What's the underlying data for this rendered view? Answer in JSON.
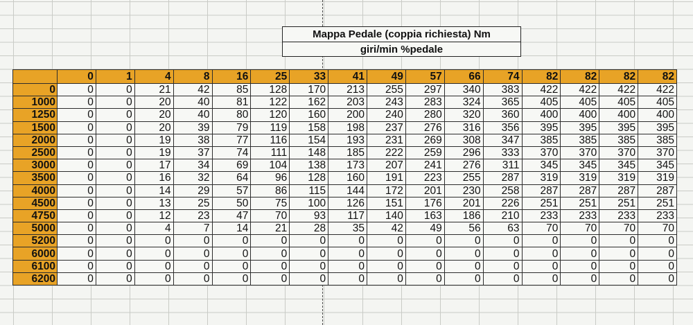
{
  "title": {
    "line1": "Mappa Pedale (coppia richiesta) Nm",
    "line2": "giri/min %pedale"
  },
  "colors": {
    "header_fill": "#e8a326",
    "cell_fill": "#f7f8f5",
    "grid": "#c9cbc6"
  },
  "table": {
    "pedal_headers": [
      "0",
      "1",
      "4",
      "8",
      "16",
      "25",
      "33",
      "41",
      "49",
      "57",
      "66",
      "74",
      "82",
      "82",
      "82",
      "82"
    ],
    "rows": [
      {
        "rpm": "0",
        "values": [
          "0",
          "0",
          "21",
          "42",
          "85",
          "128",
          "170",
          "213",
          "255",
          "297",
          "340",
          "383",
          "422",
          "422",
          "422",
          "422"
        ]
      },
      {
        "rpm": "1000",
        "values": [
          "0",
          "0",
          "20",
          "40",
          "81",
          "122",
          "162",
          "203",
          "243",
          "283",
          "324",
          "365",
          "405",
          "405",
          "405",
          "405"
        ]
      },
      {
        "rpm": "1250",
        "values": [
          "0",
          "0",
          "20",
          "40",
          "80",
          "120",
          "160",
          "200",
          "240",
          "280",
          "320",
          "360",
          "400",
          "400",
          "400",
          "400"
        ]
      },
      {
        "rpm": "1500",
        "values": [
          "0",
          "0",
          "20",
          "39",
          "79",
          "119",
          "158",
          "198",
          "237",
          "276",
          "316",
          "356",
          "395",
          "395",
          "395",
          "395"
        ]
      },
      {
        "rpm": "2000",
        "values": [
          "0",
          "0",
          "19",
          "38",
          "77",
          "116",
          "154",
          "193",
          "231",
          "269",
          "308",
          "347",
          "385",
          "385",
          "385",
          "385"
        ]
      },
      {
        "rpm": "2500",
        "values": [
          "0",
          "0",
          "19",
          "37",
          "74",
          "111",
          "148",
          "185",
          "222",
          "259",
          "296",
          "333",
          "370",
          "370",
          "370",
          "370"
        ]
      },
      {
        "rpm": "3000",
        "values": [
          "0",
          "0",
          "17",
          "34",
          "69",
          "104",
          "138",
          "173",
          "207",
          "241",
          "276",
          "311",
          "345",
          "345",
          "345",
          "345"
        ]
      },
      {
        "rpm": "3500",
        "values": [
          "0",
          "0",
          "16",
          "32",
          "64",
          "96",
          "128",
          "160",
          "191",
          "223",
          "255",
          "287",
          "319",
          "319",
          "319",
          "319"
        ]
      },
      {
        "rpm": "4000",
        "values": [
          "0",
          "0",
          "14",
          "29",
          "57",
          "86",
          "115",
          "144",
          "172",
          "201",
          "230",
          "258",
          "287",
          "287",
          "287",
          "287"
        ]
      },
      {
        "rpm": "4500",
        "values": [
          "0",
          "0",
          "13",
          "25",
          "50",
          "75",
          "100",
          "126",
          "151",
          "176",
          "201",
          "226",
          "251",
          "251",
          "251",
          "251"
        ]
      },
      {
        "rpm": "4750",
        "values": [
          "0",
          "0",
          "12",
          "23",
          "47",
          "70",
          "93",
          "117",
          "140",
          "163",
          "186",
          "210",
          "233",
          "233",
          "233",
          "233"
        ]
      },
      {
        "rpm": "5000",
        "values": [
          "0",
          "0",
          "4",
          "7",
          "14",
          "21",
          "28",
          "35",
          "42",
          "49",
          "56",
          "63",
          "70",
          "70",
          "70",
          "70"
        ]
      },
      {
        "rpm": "5200",
        "values": [
          "0",
          "0",
          "0",
          "0",
          "0",
          "0",
          "0",
          "0",
          "0",
          "0",
          "0",
          "0",
          "0",
          "0",
          "0",
          "0"
        ]
      },
      {
        "rpm": "6000",
        "values": [
          "0",
          "0",
          "0",
          "0",
          "0",
          "0",
          "0",
          "0",
          "0",
          "0",
          "0",
          "0",
          "0",
          "0",
          "0",
          "0"
        ]
      },
      {
        "rpm": "6100",
        "values": [
          "0",
          "0",
          "0",
          "0",
          "0",
          "0",
          "0",
          "0",
          "0",
          "0",
          "0",
          "0",
          "0",
          "0",
          "0",
          "0"
        ]
      },
      {
        "rpm": "6200",
        "values": [
          "0",
          "0",
          "0",
          "0",
          "0",
          "0",
          "0",
          "0",
          "0",
          "0",
          "0",
          "0",
          "0",
          "0",
          "0",
          "0"
        ]
      }
    ]
  }
}
